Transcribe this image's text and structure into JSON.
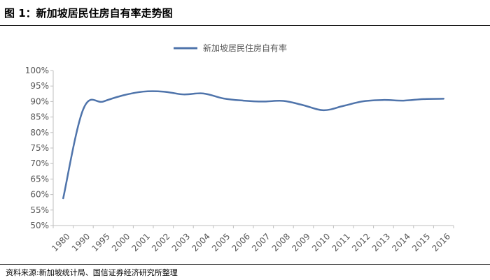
{
  "figure": {
    "title": "图 1：新加坡居民住房自有率走势图",
    "source": "资料来源:新加坡统计局、国信证券经济研究所整理"
  },
  "chart_data": {
    "type": "line",
    "title": "",
    "xlabel": "",
    "ylabel": "",
    "categories": [
      "1980",
      "1990",
      "1995",
      "2000",
      "2001",
      "2002",
      "2003",
      "2004",
      "2005",
      "2006",
      "2007",
      "2008",
      "2009",
      "2010",
      "2011",
      "2012",
      "2013",
      "2014",
      "2015",
      "2016"
    ],
    "series": [
      {
        "name": "新加坡居民住房自有率",
        "color": "#4f74ab",
        "values": [
          58.8,
          87.5,
          90.0,
          92.0,
          93.2,
          93.2,
          92.3,
          92.6,
          91.0,
          90.3,
          90.0,
          90.2,
          88.8,
          87.2,
          88.6,
          90.1,
          90.5,
          90.3,
          90.8,
          90.9
        ]
      }
    ],
    "ylim": [
      50,
      100
    ],
    "yticks": [
      "50%",
      "55%",
      "60%",
      "65%",
      "70%",
      "75%",
      "80%",
      "85%",
      "90%",
      "95%",
      "100%"
    ],
    "ytick_values": [
      50,
      55,
      60,
      65,
      70,
      75,
      80,
      85,
      90,
      95,
      100
    ],
    "grid": false,
    "legend": "top-center"
  }
}
